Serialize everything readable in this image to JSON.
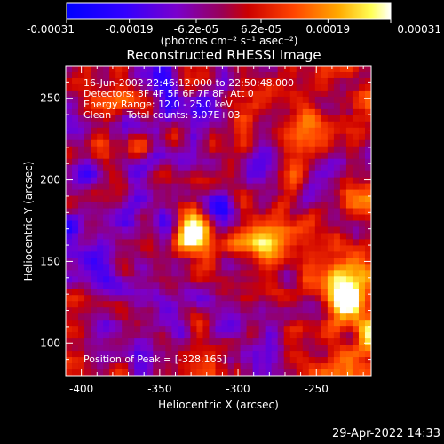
{
  "chart_data": {
    "type": "heatmap",
    "title": "Reconstructed RHESSI Image",
    "xlabel": "Heliocentric X (arcsec)",
    "ylabel": "Heliocentric Y (arcsec)",
    "xlim": [
      -410,
      -215
    ],
    "ylim": [
      80,
      270
    ],
    "x_ticks": [
      -400,
      -350,
      -300,
      -250
    ],
    "y_ticks": [
      100,
      150,
      200,
      250
    ],
    "x_tick_labels": [
      "-400",
      "-350",
      "-300",
      "-250"
    ],
    "y_tick_labels": [
      "100",
      "150",
      "200",
      "250"
    ],
    "colorbar": {
      "ticks": [
        -0.00031,
        -0.00019,
        -6.2e-05,
        6.2e-05,
        0.00019,
        0.00031
      ],
      "tick_labels": [
        "-0.00031",
        "-0.00019",
        "-6.2e-05",
        "6.2e-05",
        "0.00019",
        "0.00031"
      ],
      "unit_label": "(photons cm⁻² s⁻¹ asec⁻²)",
      "range": [
        -0.00031,
        0.00031
      ],
      "colormap": [
        "#0000ff",
        "#6600ff",
        "#9900cc",
        "#cc0033",
        "#ff3300",
        "#ff9900",
        "#ffff66",
        "#ffffff"
      ]
    },
    "annotations": [
      "16-Jun-2002 22:46:12.000 to 22:50:48.000",
      "Detectors: 3F 4F 5F 6F 7F 8F, Att 0",
      "Energy Range: 12.0 - 25.0 keV",
      "Clean     Total counts: 3.07E+03"
    ],
    "peak_label": "Position of Peak = [-328,165]",
    "sources": [
      {
        "x": -328,
        "y": 165,
        "value": 0.00031
      },
      {
        "x": -282,
        "y": 162,
        "value": 0.00028
      },
      {
        "x": -240,
        "y": 140,
        "value": 0.00024
      },
      {
        "x": -228,
        "y": 125,
        "value": 0.00022
      },
      {
        "x": -265,
        "y": 230,
        "value": 0.00018
      },
      {
        "x": -380,
        "y": 250,
        "value": 0.00016
      }
    ]
  },
  "footer": {
    "timestamp": "29-Apr-2022 14:33"
  },
  "colors": {
    "background": "#000000",
    "axis": "#ffffff"
  }
}
